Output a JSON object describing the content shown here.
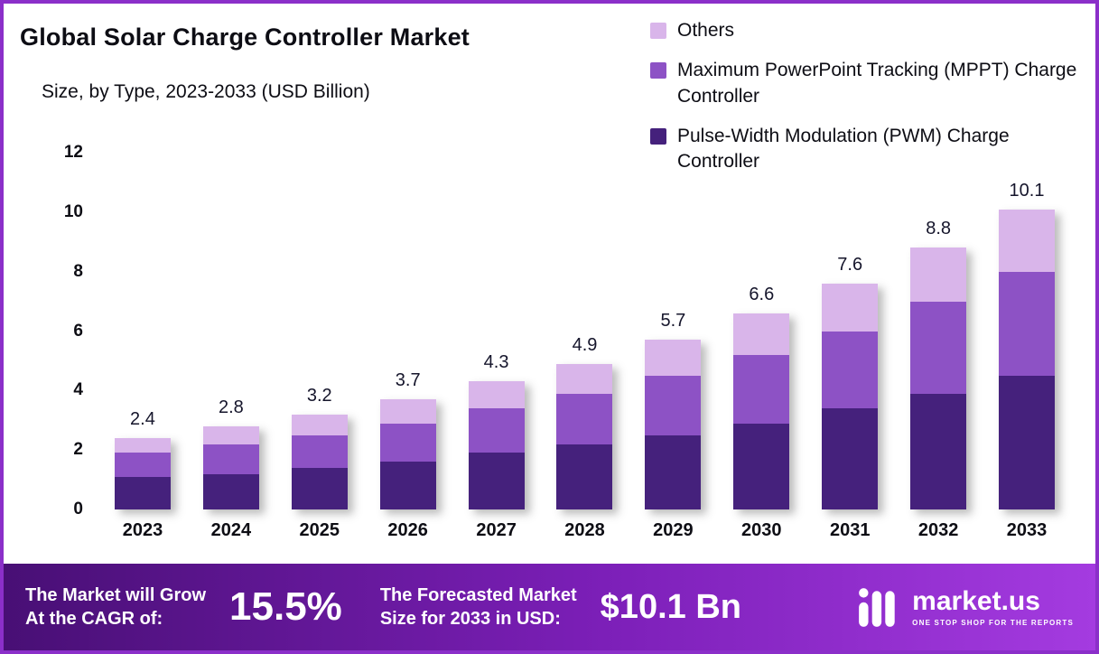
{
  "header": {
    "title": "Global Solar Charge Controller Market",
    "subtitle": "Size, by Type, 2023-2033 (USD Billion)"
  },
  "legend": [
    {
      "label": "Others",
      "color": "#d9b5ea"
    },
    {
      "label": "Maximum PowerPoint Tracking (MPPT) Charge Controller",
      "color": "#8d52c5"
    },
    {
      "label": "Pulse-Width Modulation (PWM) Charge Controller",
      "color": "#45217c"
    }
  ],
  "chart_data": {
    "type": "bar",
    "stacked": true,
    "title": "Global Solar Charge Controller Market Size, by Type, 2023-2033 (USD Billion)",
    "categories": [
      "2023",
      "2024",
      "2025",
      "2026",
      "2027",
      "2028",
      "2029",
      "2030",
      "2031",
      "2032",
      "2033"
    ],
    "series": [
      {
        "name": "Pulse-Width Modulation (PWM) Charge Controller",
        "color": "#45217c",
        "values": [
          1.1,
          1.2,
          1.4,
          1.6,
          1.9,
          2.2,
          2.5,
          2.9,
          3.4,
          3.9,
          4.5
        ]
      },
      {
        "name": "Maximum PowerPoint Tracking (MPPT) Charge Controller",
        "color": "#8d52c5",
        "values": [
          0.8,
          1.0,
          1.1,
          1.3,
          1.5,
          1.7,
          2.0,
          2.3,
          2.6,
          3.1,
          3.5
        ]
      },
      {
        "name": "Others",
        "color": "#d9b5ea",
        "values": [
          0.5,
          0.6,
          0.7,
          0.8,
          0.9,
          1.0,
          1.2,
          1.4,
          1.6,
          1.8,
          2.1
        ]
      }
    ],
    "totals": [
      2.4,
      2.8,
      3.2,
      3.7,
      4.3,
      4.9,
      5.7,
      6.6,
      7.6,
      8.8,
      10.1
    ],
    "total_labels": [
      "2.4",
      "2.8",
      "3.2",
      "3.7",
      "4.3",
      "4.9",
      "5.7",
      "6.6",
      "7.6",
      "8.8",
      "10.1"
    ],
    "xlabel": "",
    "ylabel": "",
    "ylim": [
      0,
      12
    ],
    "yticks": [
      0,
      2,
      4,
      6,
      8,
      10,
      12
    ],
    "grid": false,
    "legend_position": "top-right"
  },
  "banner": {
    "cagr_label_line1": "The Market will Grow",
    "cagr_label_line2": "At the CAGR of:",
    "cagr_value": "15.5%",
    "forecast_label_line1": "The Forecasted Market",
    "forecast_label_line2": "Size for 2033 in USD:",
    "forecast_value": "$10.1 Bn",
    "brand": "market.us",
    "brand_tagline": "ONE STOP SHOP FOR THE REPORTS"
  },
  "colors": {
    "frame_border": "#8b2fc9",
    "banner_gradient_left": "#480f75",
    "banner_gradient_mid": "#7c1fb8",
    "banner_gradient_right": "#a43be0",
    "text_dark": "#0d0d14"
  }
}
